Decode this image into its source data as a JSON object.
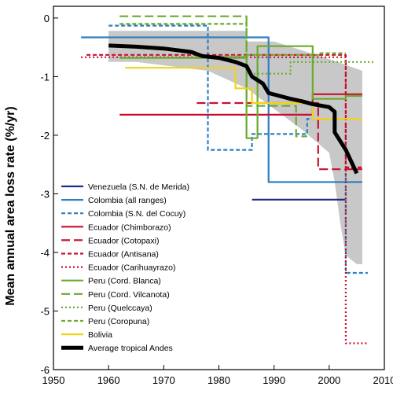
{
  "chart_data": {
    "type": "line",
    "title": "",
    "xlabel": "",
    "ylabel": "Mean annual area loss rate (%/yr)",
    "xlim": [
      1950,
      2010
    ],
    "ylim": [
      -6,
      0.2
    ],
    "xticks": [
      1950,
      1960,
      1970,
      1980,
      1990,
      2000,
      2010
    ],
    "yticks": [
      0,
      -1,
      -2,
      -3,
      -4,
      -5,
      -6
    ],
    "grid": false,
    "legend_position": "bottom-left",
    "band": {
      "color": "#c8c8c8",
      "upper": [
        [
          1960,
          -0.22
        ],
        [
          1978,
          -0.22
        ],
        [
          1985,
          -0.22
        ],
        [
          1985,
          -0.4
        ],
        [
          1990,
          -0.4
        ],
        [
          2000,
          -0.7
        ],
        [
          2003,
          -0.8
        ],
        [
          2006,
          -0.9
        ],
        [
          2006,
          -4.2
        ]
      ],
      "lower": [
        [
          1960,
          -0.75
        ],
        [
          1965,
          -0.75
        ],
        [
          1978,
          -0.9
        ],
        [
          1985,
          -1.2
        ],
        [
          1990,
          -1.55
        ],
        [
          1995,
          -1.9
        ],
        [
          2000,
          -2.3
        ],
        [
          2001,
          -2.8
        ],
        [
          2002,
          -3.5
        ],
        [
          2003,
          -4.05
        ],
        [
          2005,
          -4.2
        ]
      ]
    },
    "series": [
      {
        "name": "Venezuela (S.N. de Merida)",
        "color": "#1f2d86",
        "dash": "solid",
        "points": [
          [
            1986,
            -3.1
          ],
          [
            2003,
            -3.1
          ]
        ]
      },
      {
        "name": "Colombia (all ranges)",
        "color": "#2f7fc1",
        "dash": "solid",
        "points": [
          [
            1955,
            -0.33
          ],
          [
            1989,
            -0.33
          ],
          [
            1989,
            -2.8
          ],
          [
            2006,
            -2.8
          ]
        ]
      },
      {
        "name": "Colombia (S.N. del Cocuy)",
        "color": "#2f7fc1",
        "dash": "short",
        "points": [
          [
            1960,
            -0.13
          ],
          [
            1978,
            -0.13
          ],
          [
            1978,
            -2.25
          ],
          [
            1986,
            -2.25
          ],
          [
            1986,
            -1.98
          ],
          [
            1996,
            -1.98
          ],
          [
            1996,
            -1.72
          ],
          [
            2003,
            -1.72
          ],
          [
            2003,
            -4.35
          ],
          [
            2007,
            -4.35
          ]
        ]
      },
      {
        "name": "Ecuador (Chimborazo)",
        "color": "#c8102e",
        "dash": "solid",
        "points": [
          [
            1962,
            -1.65
          ],
          [
            1997,
            -1.65
          ],
          [
            1997,
            -1.3
          ],
          [
            2006,
            -1.3
          ]
        ]
      },
      {
        "name": "Ecuador (Cotopaxi)",
        "color": "#c8102e",
        "dash": "long",
        "points": [
          [
            1976,
            -1.45
          ],
          [
            1998,
            -1.45
          ],
          [
            1998,
            -2.58
          ],
          [
            2006,
            -2.58
          ]
        ]
      },
      {
        "name": "Ecuador (Antisana)",
        "color": "#c8102e",
        "dash": "short",
        "points": [
          [
            1956,
            -0.63
          ],
          [
            2003,
            -0.63
          ],
          [
            2003,
            -2.55
          ],
          [
            2006,
            -2.55
          ]
        ]
      },
      {
        "name": "Ecuador (Carihuayrazo)",
        "color": "#c8102e",
        "dash": "dot",
        "points": [
          [
            1955,
            -0.67
          ],
          [
            2003,
            -0.67
          ],
          [
            2003,
            -5.55
          ],
          [
            2007,
            -5.55
          ]
        ]
      },
      {
        "name": "Peru (Cord. Blanca)",
        "color": "#6aab2e",
        "dash": "solid",
        "points": [
          [
            1962,
            -0.68
          ],
          [
            1985,
            -0.68
          ],
          [
            1985,
            -2.05
          ],
          [
            1987,
            -2.05
          ],
          [
            1987,
            -0.48
          ],
          [
            1997,
            -0.48
          ],
          [
            1997,
            -1.38
          ],
          [
            2003,
            -1.38
          ],
          [
            2003,
            -1.33
          ],
          [
            2006,
            -1.33
          ]
        ]
      },
      {
        "name": "Peru (Cord. Vilcanota)",
        "color": "#6aab2e",
        "dash": "long",
        "points": [
          [
            1962,
            0.03
          ],
          [
            1985,
            0.03
          ],
          [
            1985,
            -1.5
          ],
          [
            1994,
            -1.5
          ],
          [
            1994,
            -2.02
          ],
          [
            1996,
            -2.02
          ]
        ]
      },
      {
        "name": "Peru (Quelccaya)",
        "color": "#6aab2e",
        "dash": "dot",
        "points": [
          [
            1976,
            -0.65
          ],
          [
            1985,
            -0.65
          ],
          [
            1985,
            -0.95
          ],
          [
            1993,
            -0.95
          ],
          [
            1993,
            -0.75
          ],
          [
            2008,
            -0.75
          ]
        ]
      },
      {
        "name": "Peru (Coropuna)",
        "color": "#6aab2e",
        "dash": "short",
        "points": [
          [
            1962,
            -0.1
          ],
          [
            1985,
            -0.1
          ],
          [
            1985,
            -0.63
          ],
          [
            1998,
            -0.63
          ],
          [
            1998,
            -0.6
          ],
          [
            2003,
            -0.6
          ]
        ]
      },
      {
        "name": "Bolivia",
        "color": "#f2d21b",
        "dash": "solid",
        "points": [
          [
            1963,
            -0.85
          ],
          [
            1983,
            -0.85
          ],
          [
            1983,
            -1.2
          ],
          [
            1986,
            -1.2
          ],
          [
            1986,
            -1.45
          ],
          [
            1997,
            -1.45
          ],
          [
            1997,
            -1.72
          ],
          [
            2006,
            -1.72
          ]
        ]
      },
      {
        "name": "Average tropical Andes",
        "color": "#000000",
        "dash": "thick",
        "points": [
          [
            1960,
            -0.47
          ],
          [
            1965,
            -0.49
          ],
          [
            1970,
            -0.52
          ],
          [
            1975,
            -0.58
          ],
          [
            1977,
            -0.65
          ],
          [
            1980,
            -0.68
          ],
          [
            1983,
            -0.75
          ],
          [
            1985,
            -0.82
          ],
          [
            1986,
            -1.0
          ],
          [
            1988,
            -1.12
          ],
          [
            1989,
            -1.28
          ],
          [
            1991,
            -1.33
          ],
          [
            1993,
            -1.38
          ],
          [
            1995,
            -1.42
          ],
          [
            1997,
            -1.47
          ],
          [
            2000,
            -1.52
          ],
          [
            2001,
            -1.6
          ],
          [
            2001,
            -1.95
          ],
          [
            2003,
            -2.25
          ],
          [
            2004,
            -2.45
          ],
          [
            2005,
            -2.65
          ]
        ]
      }
    ]
  }
}
